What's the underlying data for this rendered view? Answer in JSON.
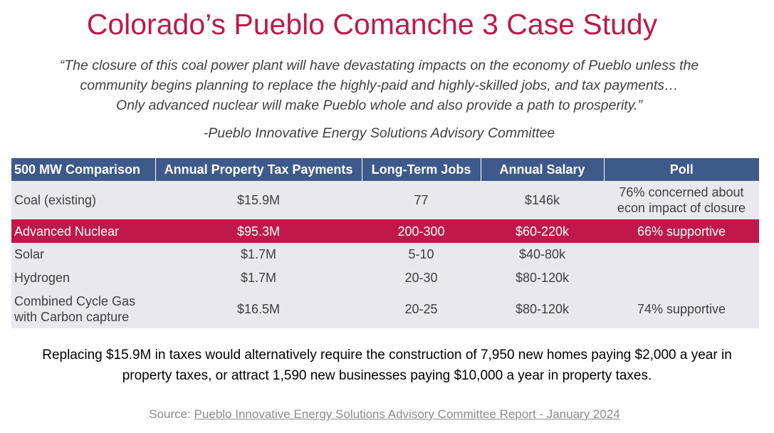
{
  "title": "Colorado’s Pueblo Comanche 3 Case Study",
  "quote": {
    "line1": "“The closure of this coal power plant will have devastating impacts on the  economy of Pueblo unless the",
    "line2": "community begins planning to replace the highly-paid and highly-skilled jobs, and tax payments…",
    "line3": "Only advanced nuclear will make Pueblo whole and also provide a path to prosperity.”",
    "attribution": "-Pueblo Innovative Energy Solutions Advisory Committee"
  },
  "table": {
    "headers": [
      "500 MW Comparison",
      "Annual Property Tax Payments",
      "Long-Term Jobs",
      "Annual Salary",
      "Poll"
    ],
    "rows": {
      "coal": {
        "name": "Coal (existing)",
        "tax": "$15.9M",
        "jobs": "77",
        "salary": "$146k",
        "poll_line1": "76% concerned about",
        "poll_line2": "econ impact of closure"
      },
      "nuclear": {
        "name": "Advanced Nuclear",
        "tax": "$95.3M",
        "jobs": "200-300",
        "salary": "$60-220k",
        "poll": "66% supportive"
      },
      "solar": {
        "name": "Solar",
        "tax": "$1.7M",
        "jobs": "5-10",
        "salary": "$40-80k",
        "poll": ""
      },
      "hydrogen": {
        "name": "Hydrogen",
        "tax": "$1.7M",
        "jobs": "20-30",
        "salary": "$80-120k",
        "poll": ""
      },
      "gas": {
        "name_line1": "Combined Cycle Gas",
        "name_line2": "with Carbon capture",
        "tax": "$16.5M",
        "jobs": "20-25",
        "salary": "$80-120k",
        "poll": "74% supportive"
      }
    }
  },
  "footnote": {
    "line1": "Replacing $15.9M in taxes would alternatively require the construction of 7,950 new homes paying $2,000 a year in",
    "line2": "property taxes, or attract 1,590 new businesses paying $10,000 a year in property taxes."
  },
  "source": {
    "prefix": "Source: ",
    "link_text": "Pueblo Innovative Energy Solutions Advisory Committee Report - January 2024"
  },
  "colors": {
    "accent": "#c0184a",
    "header_bg": "#3d5a8a",
    "row_bg": "#e8e8ed"
  }
}
